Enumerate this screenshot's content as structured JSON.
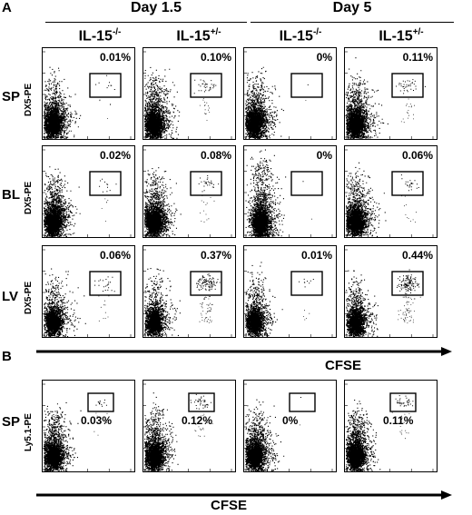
{
  "panel_a_label": "A",
  "panel_b_label": "B",
  "days": [
    "Day 1.5",
    "Day 5"
  ],
  "groups": [
    {
      "base": "IL-15",
      "sup": "-/-"
    },
    {
      "base": "IL-15",
      "sup": "+/-"
    },
    {
      "base": "IL-15",
      "sup": "-/-"
    },
    {
      "base": "IL-15",
      "sup": "+/-"
    }
  ],
  "rows_a": [
    {
      "label": "SP",
      "ylabel": "DX5-PE",
      "values": [
        "0.01%",
        "0.10%",
        "0%",
        "0.11%"
      ]
    },
    {
      "label": "BL",
      "ylabel": "DX5-PE",
      "values": [
        "0.02%",
        "0.08%",
        "0%",
        "0.06%"
      ]
    },
    {
      "label": "LV",
      "ylabel": "DX5-PE",
      "values": [
        "0.06%",
        "0.37%",
        "0.01%",
        "0.44%"
      ]
    }
  ],
  "row_b": {
    "label": "SP",
    "ylabel": "Ly5.1-PE",
    "values": [
      "0.03%",
      "0.12%",
      "0%",
      "0.11%"
    ]
  },
  "xlabel": "CFSE",
  "chart_data": {
    "type": "scatter",
    "title": "",
    "xlabel": "CFSE",
    "ylabels": [
      "DX5-PE",
      "Ly5.1-PE"
    ],
    "x_scale": "log",
    "y_scale": "log",
    "xlim": [
      1,
      10000
    ],
    "ylim": [
      1,
      10000
    ],
    "conditions": [
      "Day 1.5 IL-15-/-",
      "Day 1.5 IL-15+/-",
      "Day 5 IL-15-/-",
      "Day 5 IL-15+/-"
    ],
    "gated_percent": {
      "A_SP": [
        0.01,
        0.1,
        0,
        0.11
      ],
      "A_BL": [
        0.02,
        0.08,
        0,
        0.06
      ],
      "A_LV": [
        0.06,
        0.37,
        0.01,
        0.44
      ],
      "B_SP": [
        0.03,
        0.12,
        0,
        0.11
      ]
    }
  }
}
